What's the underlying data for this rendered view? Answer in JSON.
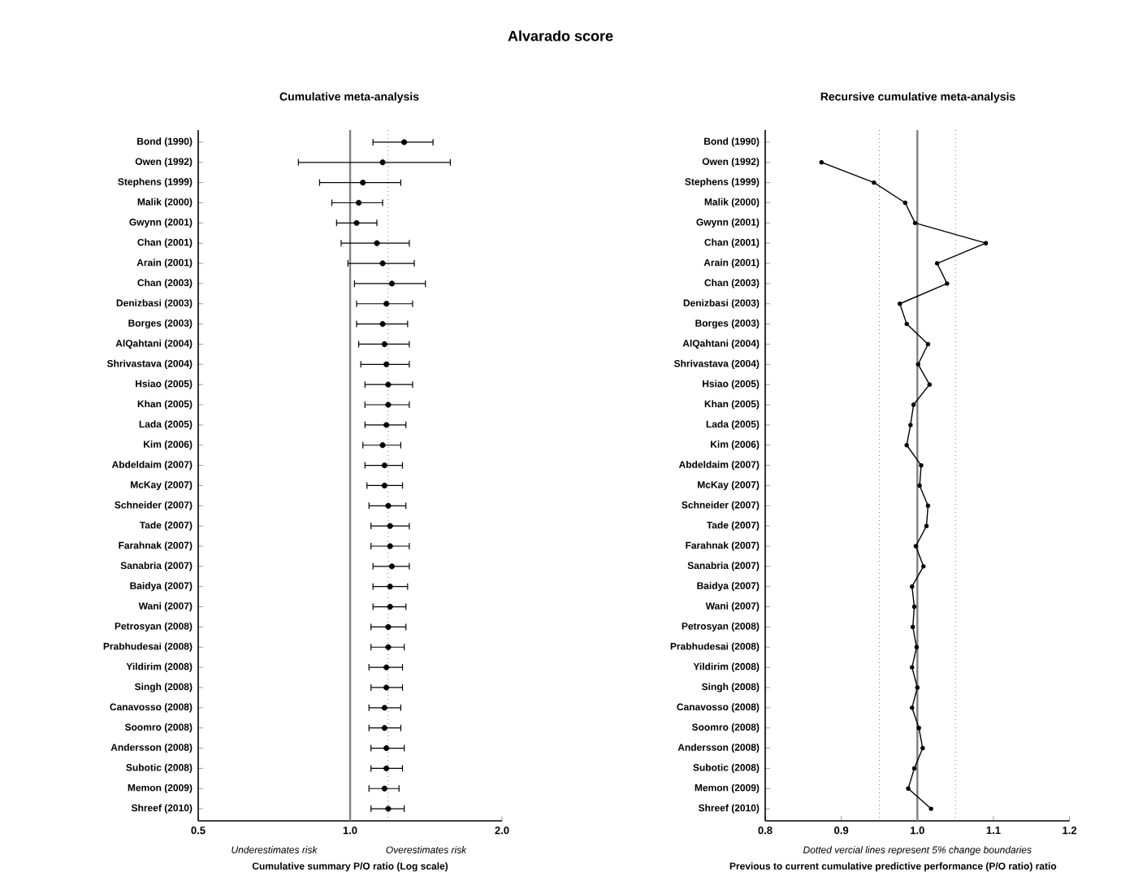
{
  "chart_data": [
    {
      "type": "scatter",
      "orientation": "horizontal",
      "title": "Alvarado score",
      "subtitle": "Cumulative meta-analysis",
      "xlabel": "Cumulative summary P/O ratio (Log scale)",
      "categories": [
        "Bond (1990)",
        "Owen (1992)",
        "Stephens (1999)",
        "Malik (2000)",
        "Gwynn (2001)",
        "Chan (2001)",
        "Arain (2001)",
        "Chan (2003)",
        "Denizbasi (2003)",
        "Borges (2003)",
        "AlQahtani (2004)",
        "Shrivastava (2004)",
        "Hsiao (2005)",
        "Khan (2005)",
        "Lada (2005)",
        "Kim (2006)",
        "Abdeldaim (2007)",
        "McKay (2007)",
        "Schneider (2007)",
        "Tade (2007)",
        "Farahnak (2007)",
        "Sanabria (2007)",
        "Baidya (2007)",
        "Wani (2007)",
        "Petrosyan (2008)",
        "Prabhudesai (2008)",
        "Yildirim (2008)",
        "Singh (2008)",
        "Canavosso (2008)",
        "Soomro (2008)",
        "Andersson (2008)",
        "Subotic (2008)",
        "Memon (2009)",
        "Shreef (2010)"
      ],
      "values": [
        1.28,
        1.16,
        1.06,
        1.04,
        1.03,
        1.13,
        1.16,
        1.21,
        1.18,
        1.16,
        1.17,
        1.18,
        1.19,
        1.19,
        1.18,
        1.16,
        1.17,
        1.17,
        1.19,
        1.2,
        1.2,
        1.21,
        1.2,
        1.2,
        1.19,
        1.19,
        1.18,
        1.18,
        1.17,
        1.17,
        1.18,
        1.18,
        1.17,
        1.19
      ],
      "errors": [
        [
          1.11,
          1.46
        ],
        [
          0.79,
          1.58
        ],
        [
          0.87,
          1.26
        ],
        [
          0.92,
          1.16
        ],
        [
          0.94,
          1.13
        ],
        [
          0.96,
          1.31
        ],
        [
          0.99,
          1.34
        ],
        [
          1.02,
          1.41
        ],
        [
          1.03,
          1.33
        ],
        [
          1.03,
          1.3
        ],
        [
          1.04,
          1.31
        ],
        [
          1.05,
          1.31
        ],
        [
          1.07,
          1.33
        ],
        [
          1.07,
          1.31
        ],
        [
          1.07,
          1.29
        ],
        [
          1.06,
          1.26
        ],
        [
          1.07,
          1.27
        ],
        [
          1.08,
          1.27
        ],
        [
          1.09,
          1.29
        ],
        [
          1.1,
          1.31
        ],
        [
          1.1,
          1.31
        ],
        [
          1.11,
          1.31
        ],
        [
          1.11,
          1.3
        ],
        [
          1.11,
          1.29
        ],
        [
          1.1,
          1.29
        ],
        [
          1.1,
          1.28
        ],
        [
          1.09,
          1.27
        ],
        [
          1.1,
          1.27
        ],
        [
          1.09,
          1.26
        ],
        [
          1.09,
          1.26
        ],
        [
          1.1,
          1.28
        ],
        [
          1.1,
          1.27
        ],
        [
          1.09,
          1.25
        ],
        [
          1.1,
          1.28
        ]
      ],
      "color": "#000000",
      "marker": "circle",
      "log": "x",
      "xlim": [
        0.5,
        2.0
      ],
      "xticks": [
        {
          "value": 0.5,
          "label": "0.5"
        },
        {
          "value": 1,
          "label": "1.0"
        },
        {
          "value": 2,
          "label": "2.0"
        }
      ],
      "ref_lines": [
        {
          "axis": "x",
          "value": 1,
          "color": "#808080",
          "line_style": "solid"
        },
        {
          "axis": "x",
          "value": 1.19,
          "color": "#808080",
          "line_style": "dotted"
        }
      ],
      "annotations": [
        "Underestimates risk",
        "Overestimates risk"
      ]
    },
    {
      "type": "line",
      "orientation": "horizontal",
      "subtitle": "Recursive cumulative meta-analysis",
      "xlabel": "Previous to current cumulative predictive performance (P/O ratio) ratio",
      "categories": [
        "Bond (1990)",
        "Owen (1992)",
        "Stephens (1999)",
        "Malik (2000)",
        "Gwynn (2001)",
        "Chan (2001)",
        "Arain (2001)",
        "Chan (2003)",
        "Denizbasi (2003)",
        "Borges (2003)",
        "AlQahtani (2004)",
        "Shrivastava (2004)",
        "Hsiao (2005)",
        "Khan (2005)",
        "Lada (2005)",
        "Kim (2006)",
        "Abdeldaim (2007)",
        "McKay (2007)",
        "Schneider (2007)",
        "Tade (2007)",
        "Farahnak (2007)",
        "Sanabria (2007)",
        "Baidya (2007)",
        "Wani (2007)",
        "Petrosyan (2008)",
        "Prabhudesai (2008)",
        "Yildirim (2008)",
        "Singh (2008)",
        "Canavosso (2008)",
        "Soomro (2008)",
        "Andersson (2008)",
        "Subotic (2008)",
        "Memon (2009)",
        "Shreef (2010)"
      ],
      "values": [
        null,
        0.874,
        0.943,
        0.984,
        0.997,
        1.09,
        1.026,
        1.039,
        0.977,
        0.986,
        1.014,
        1.001,
        1.016,
        0.995,
        0.991,
        0.986,
        1.005,
        1.003,
        1.014,
        1.012,
        0.998,
        1.008,
        0.993,
        0.996,
        0.994,
        0.999,
        0.993,
        1.0,
        0.993,
        1.002,
        1.007,
        0.996,
        0.988,
        1.018
      ],
      "color": "#000000",
      "marker": "circle",
      "xlim": [
        0.8,
        1.2
      ],
      "xticks": [
        {
          "value": 0.8,
          "label": "0.8"
        },
        {
          "value": 0.9,
          "label": "0.9"
        },
        {
          "value": 1,
          "label": "1.0"
        },
        {
          "value": 1.1,
          "label": "1.1"
        },
        {
          "value": 1.2,
          "label": "1.2"
        }
      ],
      "ref_lines": [
        {
          "axis": "x",
          "value": 1,
          "color": "#808080",
          "line_style": "solid"
        },
        {
          "axis": "x",
          "value": 0.95,
          "color": "#808080",
          "line_style": "dotted"
        },
        {
          "axis": "x",
          "value": 1.05,
          "color": "#808080",
          "line_style": "dotted"
        }
      ],
      "annotations": [
        "Dotted vercial lines represent 5% change boundaries"
      ]
    }
  ]
}
